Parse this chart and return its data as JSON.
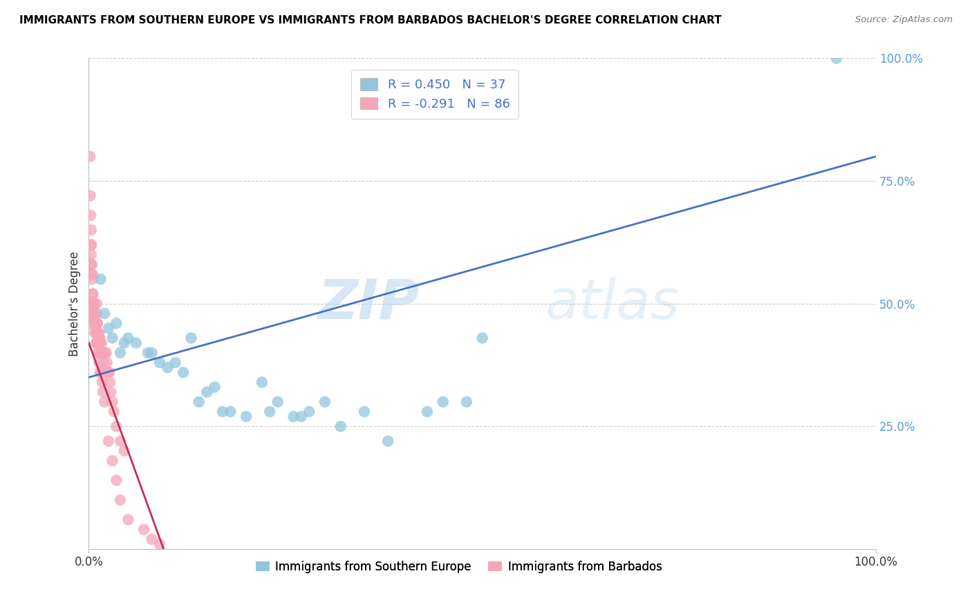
{
  "title": "IMMIGRANTS FROM SOUTHERN EUROPE VS IMMIGRANTS FROM BARBADOS BACHELOR'S DEGREE CORRELATION CHART",
  "source": "Source: ZipAtlas.com",
  "ylabel": "Bachelor's Degree",
  "watermark": "ZIPatlas",
  "xlim": [
    0,
    100
  ],
  "ylim": [
    0,
    100
  ],
  "xtick_positions": [
    0,
    100
  ],
  "xticklabels": [
    "0.0%",
    "100.0%"
  ],
  "ytick_positions": [
    25,
    50,
    75,
    100
  ],
  "yticklabels": [
    "25.0%",
    "50.0%",
    "75.0%",
    "100.0%"
  ],
  "ytick_color": "#5b9bd5",
  "xtick_color": "#333333",
  "legend1_R": "R = 0.450",
  "legend1_N": "N = 37",
  "legend2_R": "R = -0.291",
  "legend2_N": "N = 86",
  "legend_bottom_label1": "Immigrants from Southern Europe",
  "legend_bottom_label2": "Immigrants from Barbados",
  "blue_color": "#92c5de",
  "pink_color": "#f4a6b8",
  "blue_line_color": "#4472c4",
  "pink_line_color": "#c0305a",
  "blue_line_x0": 0,
  "blue_line_x1": 100,
  "blue_line_y0": 35,
  "blue_line_y1": 80,
  "pink_line_x0": 0,
  "pink_line_x1": 9.5,
  "pink_line_y0": 42,
  "pink_line_y1": 0,
  "blue_scatter_x": [
    1.5,
    2.0,
    3.0,
    4.5,
    6.0,
    7.5,
    9.0,
    10.0,
    12.0,
    14.0,
    15.0,
    17.0,
    20.0,
    22.0,
    24.0,
    26.0,
    28.0,
    30.0,
    35.0,
    45.0,
    50.0,
    95.0,
    3.5,
    5.0,
    8.0,
    11.0,
    13.0,
    16.0,
    2.5,
    4.0,
    18.0,
    23.0,
    27.0,
    32.0,
    38.0,
    43.0,
    48.0
  ],
  "blue_scatter_y": [
    55,
    48,
    43,
    42,
    42,
    40,
    38,
    37,
    36,
    30,
    32,
    28,
    27,
    34,
    30,
    27,
    28,
    30,
    28,
    30,
    43,
    100,
    46,
    43,
    40,
    38,
    43,
    33,
    45,
    40,
    28,
    28,
    27,
    25,
    22,
    28,
    30
  ],
  "pink_scatter_x": [
    0.15,
    0.2,
    0.25,
    0.3,
    0.3,
    0.35,
    0.4,
    0.4,
    0.45,
    0.5,
    0.5,
    0.5,
    0.55,
    0.6,
    0.6,
    0.65,
    0.7,
    0.7,
    0.75,
    0.8,
    0.8,
    0.85,
    0.9,
    0.9,
    0.95,
    1.0,
    1.0,
    1.0,
    1.05,
    1.1,
    1.1,
    1.15,
    1.2,
    1.2,
    1.25,
    1.3,
    1.3,
    1.35,
    1.4,
    1.4,
    1.5,
    1.5,
    1.6,
    1.7,
    1.8,
    1.9,
    2.0,
    2.1,
    2.2,
    2.3,
    2.4,
    2.5,
    2.6,
    2.7,
    2.8,
    3.0,
    3.2,
    3.5,
    4.0,
    4.5,
    0.2,
    0.3,
    0.4,
    0.5,
    0.6,
    0.7,
    0.8,
    0.9,
    1.0,
    1.1,
    1.2,
    1.3,
    1.4,
    1.5,
    1.6,
    1.7,
    1.8,
    2.0,
    2.5,
    3.0,
    3.5,
    4.0,
    5.0,
    7.0,
    8.0,
    9.0
  ],
  "pink_scatter_y": [
    80,
    72,
    68,
    65,
    60,
    62,
    58,
    55,
    56,
    52,
    50,
    48,
    50,
    50,
    48,
    50,
    50,
    46,
    48,
    46,
    44,
    46,
    46,
    44,
    46,
    50,
    46,
    42,
    46,
    46,
    42,
    44,
    44,
    42,
    43,
    44,
    40,
    42,
    43,
    40,
    42,
    40,
    42,
    40,
    40,
    38,
    40,
    40,
    40,
    38,
    36,
    36,
    36,
    34,
    32,
    30,
    28,
    25,
    22,
    20,
    62,
    58,
    56,
    52,
    50,
    47,
    45,
    42,
    48,
    42,
    40,
    38,
    36,
    40,
    36,
    34,
    32,
    30,
    22,
    18,
    14,
    10,
    6,
    4,
    2,
    1
  ]
}
